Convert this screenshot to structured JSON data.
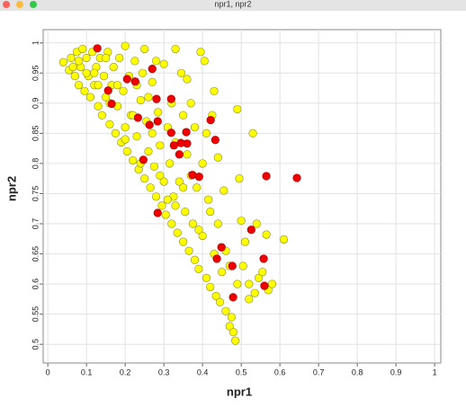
{
  "chart_data": {
    "type": "scatter",
    "title": "npr1, npr2",
    "x_label": "npr1",
    "y_label": "npr2",
    "xlim": [
      -0.012,
      1.016
    ],
    "ylim": [
      0.469,
      1.022
    ],
    "xticks": [
      0,
      0.1,
      0.2,
      0.3,
      0.4,
      0.5,
      0.6,
      0.7,
      0.8,
      0.9,
      1
    ],
    "yticks": [
      0.5,
      0.55,
      0.6,
      0.65,
      0.7,
      0.75,
      0.8,
      0.85,
      0.9,
      0.95,
      1
    ],
    "grid": true,
    "series": [
      {
        "color": "#ffff00",
        "x": [
          0.04,
          0.055,
          0.06,
          0.07,
          0.075,
          0.08,
          0.085,
          0.09,
          0.095,
          0.1,
          0.105,
          0.11,
          0.115,
          0.12,
          0.125,
          0.13,
          0.135,
          0.14,
          0.145,
          0.15,
          0.155,
          0.16,
          0.165,
          0.17,
          0.175,
          0.18,
          0.185,
          0.19,
          0.195,
          0.2,
          0.2,
          0.205,
          0.21,
          0.215,
          0.22,
          0.225,
          0.23,
          0.235,
          0.24,
          0.245,
          0.25,
          0.255,
          0.26,
          0.265,
          0.27,
          0.275,
          0.28,
          0.285,
          0.29,
          0.295,
          0.3,
          0.3,
          0.305,
          0.31,
          0.315,
          0.32,
          0.325,
          0.33,
          0.33,
          0.335,
          0.34,
          0.345,
          0.35,
          0.355,
          0.36,
          0.365,
          0.37,
          0.375,
          0.38,
          0.385,
          0.39,
          0.395,
          0.4,
          0.405,
          0.41,
          0.415,
          0.42,
          0.425,
          0.43,
          0.435,
          0.44,
          0.445,
          0.45,
          0.455,
          0.46,
          0.47,
          0.475,
          0.48,
          0.485,
          0.49,
          0.49,
          0.495,
          0.5,
          0.505,
          0.51,
          0.52,
          0.53,
          0.535,
          0.545,
          0.555,
          0.565,
          0.57,
          0.58,
          0.61,
          0.54,
          0.46,
          0.44,
          0.41,
          0.43,
          0.36,
          0.35,
          0.28,
          0.25,
          0.15,
          0.12,
          0.26,
          0.23,
          0.32,
          0.38,
          0.37,
          0.33,
          0.27,
          0.22,
          0.18,
          0.29,
          0.4,
          0.42,
          0.39,
          0.47,
          0.52,
          0.35,
          0.31,
          0.24,
          0.2,
          0.16,
          0.13,
          0.1,
          0.08,
          0.065
        ],
        "values": [
          0.968,
          0.955,
          0.975,
          0.945,
          0.985,
          0.93,
          0.96,
          0.99,
          0.92,
          0.975,
          0.945,
          0.91,
          0.985,
          0.93,
          0.96,
          0.895,
          0.975,
          0.88,
          0.945,
          0.91,
          0.985,
          0.865,
          0.93,
          0.96,
          0.85,
          0.895,
          0.975,
          0.835,
          0.92,
          0.995,
          0.86,
          0.82,
          0.945,
          0.88,
          0.805,
          0.97,
          0.845,
          0.79,
          0.905,
          0.95,
          0.775,
          0.87,
          0.82,
          0.76,
          0.935,
          0.795,
          0.745,
          0.885,
          0.83,
          0.73,
          0.965,
          0.77,
          0.715,
          0.86,
          0.8,
          0.7,
          0.745,
          0.99,
          0.835,
          0.685,
          0.77,
          0.95,
          0.67,
          0.72,
          0.815,
          0.655,
          0.9,
          0.7,
          0.64,
          0.76,
          0.625,
          0.985,
          0.68,
          0.97,
          0.61,
          0.74,
          0.595,
          0.88,
          0.65,
          0.58,
          0.7,
          0.57,
          0.62,
          0.755,
          0.555,
          0.53,
          0.545,
          0.52,
          0.506,
          0.89,
          0.6,
          0.775,
          0.705,
          0.63,
          0.67,
          0.575,
          0.85,
          0.585,
          0.61,
          0.62,
          0.682,
          0.59,
          0.6,
          0.674,
          0.7,
          0.655,
          0.81,
          0.85,
          0.92,
          0.94,
          0.88,
          0.97,
          0.99,
          0.975,
          0.95,
          0.91,
          0.93,
          0.9,
          0.86,
          0.78,
          0.73,
          0.85,
          0.88,
          0.93,
          0.78,
          0.8,
          0.72,
          0.69,
          0.63,
          0.6,
          0.76,
          0.74,
          0.8,
          0.84,
          0.9,
          0.93,
          0.95,
          0.97,
          0.96
        ]
      },
      {
        "color": "#ee0000",
        "x": [
          0.128,
          0.27,
          0.205,
          0.226,
          0.156,
          0.281,
          0.319,
          0.165,
          0.233,
          0.421,
          0.319,
          0.263,
          0.326,
          0.36,
          0.344,
          0.433,
          0.34,
          0.247,
          0.374,
          0.391,
          0.565,
          0.644,
          0.284,
          0.526,
          0.449,
          0.437,
          0.558,
          0.477,
          0.479,
          0.56,
          0.358,
          0.284
        ],
        "values": [
          0.991,
          0.957,
          0.94,
          0.936,
          0.921,
          0.907,
          0.907,
          0.899,
          0.876,
          0.872,
          0.851,
          0.864,
          0.83,
          0.833,
          0.834,
          0.839,
          0.815,
          0.806,
          0.781,
          0.778,
          0.779,
          0.776,
          0.718,
          0.69,
          0.661,
          0.642,
          0.642,
          0.63,
          0.578,
          0.597,
          0.852,
          0.87
        ]
      }
    ]
  }
}
